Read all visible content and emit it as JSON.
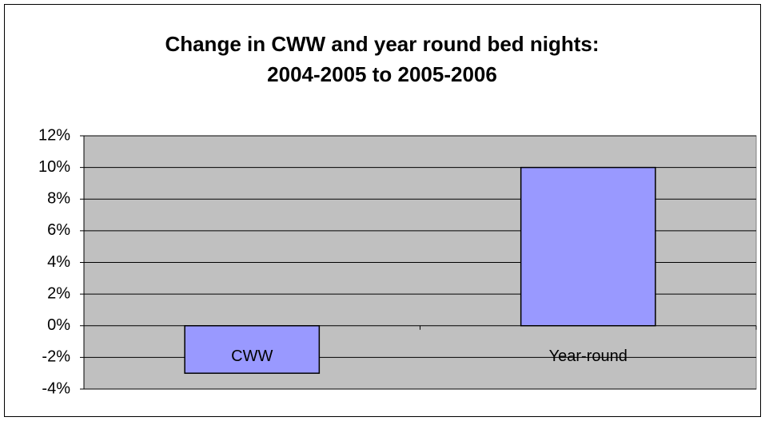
{
  "chart_data": {
    "type": "bar",
    "title": [
      "Change in CWW and year round bed nights:",
      "2004-2005 to 2005-2006"
    ],
    "categories": [
      "CWW",
      "Year-round"
    ],
    "values": [
      -3,
      10
    ],
    "color": "#9999ff",
    "ylim": [
      -4,
      12
    ],
    "yticks": [
      {
        "value": -4,
        "label": "-4%"
      },
      {
        "value": -2,
        "label": "-2%"
      },
      {
        "value": 0,
        "label": "0%"
      },
      {
        "value": 2,
        "label": "2%"
      },
      {
        "value": 4,
        "label": "4%"
      },
      {
        "value": 6,
        "label": "6%"
      },
      {
        "value": 8,
        "label": "8%"
      },
      {
        "value": 10,
        "label": "10%"
      },
      {
        "value": 12,
        "label": "12%"
      }
    ],
    "grid": true
  }
}
